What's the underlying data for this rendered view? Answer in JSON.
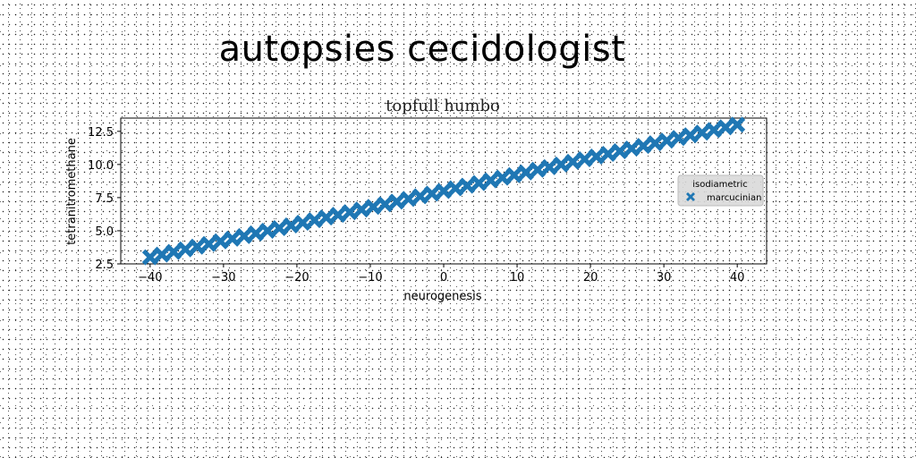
{
  "page": {
    "title": "autopsies cecidologist"
  },
  "chart_data": {
    "type": "scatter",
    "title": "topfull humbo",
    "xlabel": "neurogenesis",
    "ylabel": "tetranitromethane",
    "xlim": [
      -44,
      44
    ],
    "ylim": [
      2.5,
      13.5
    ],
    "xticks": [
      -40,
      -30,
      -20,
      -10,
      0,
      10,
      20,
      30,
      40
    ],
    "xtick_labels": [
      "−40",
      "−30",
      "−20",
      "−10",
      "0",
      "10",
      "20",
      "30",
      "40"
    ],
    "yticks": [
      2.5,
      5.0,
      7.5,
      10.0,
      12.5
    ],
    "ytick_labels": [
      "2.5",
      "5.0",
      "7.5",
      "10.0",
      "12.5"
    ],
    "grid": false,
    "marker": "X",
    "legend": {
      "title": "isodiametric",
      "placement": "center-right"
    },
    "series": [
      {
        "name": "marcucinian",
        "color": "#1f77b4",
        "x": [
          -40.0,
          -38.4,
          -36.8,
          -35.2,
          -33.6,
          -32.0,
          -30.4,
          -28.8,
          -27.2,
          -25.6,
          -24.0,
          -22.4,
          -20.8,
          -19.2,
          -17.6,
          -16.0,
          -14.4,
          -12.8,
          -11.2,
          -9.6,
          -8.0,
          -6.4,
          -4.8,
          -3.2,
          -1.6,
          0.0,
          1.6,
          3.2,
          4.8,
          6.4,
          8.0,
          9.6,
          11.2,
          12.8,
          14.4,
          16.0,
          17.6,
          19.2,
          20.8,
          22.4,
          24.0,
          25.6,
          27.2,
          28.8,
          30.4,
          32.0,
          33.6,
          35.2,
          36.8,
          38.4,
          40.0
        ],
        "y": [
          3.0,
          3.2,
          3.4,
          3.6,
          3.8,
          4.0,
          4.2,
          4.4,
          4.6,
          4.8,
          5.0,
          5.2,
          5.4,
          5.6,
          5.8,
          6.0,
          6.2,
          6.4,
          6.6,
          6.8,
          7.0,
          7.2,
          7.4,
          7.6,
          7.8,
          8.0,
          8.2,
          8.4,
          8.6,
          8.8,
          9.0,
          9.2,
          9.4,
          9.6,
          9.8,
          10.0,
          10.2,
          10.4,
          10.6,
          10.8,
          11.0,
          11.2,
          11.4,
          11.6,
          11.8,
          12.0,
          12.2,
          12.4,
          12.6,
          12.8,
          13.0
        ]
      }
    ]
  }
}
